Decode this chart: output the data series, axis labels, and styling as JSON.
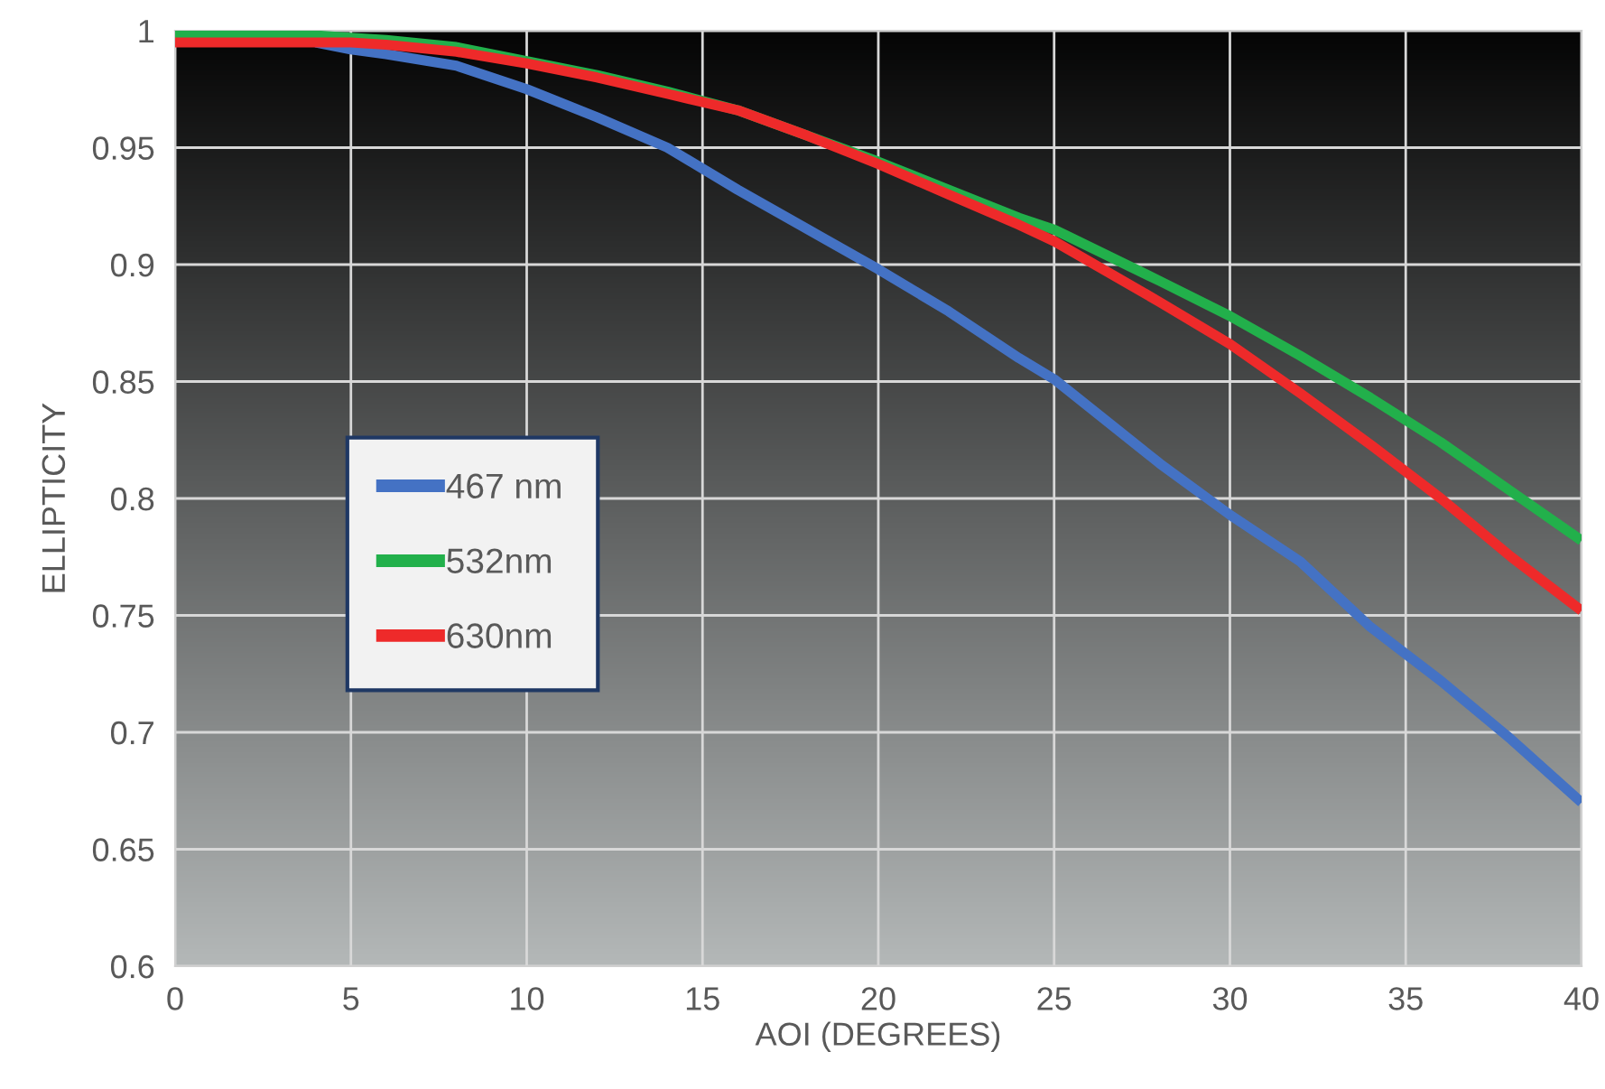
{
  "chart_data": {
    "type": "line",
    "xlabel": "AOI (DEGREES)",
    "ylabel": "ELLIPTICITY",
    "xlim": [
      0,
      40
    ],
    "xticks": [
      0,
      5,
      10,
      15,
      20,
      25,
      30,
      35,
      40
    ],
    "ylim": [
      0.6,
      1
    ],
    "yticks": [
      0.6,
      0.65,
      0.7,
      0.75,
      0.8,
      0.85,
      0.9,
      0.95,
      1
    ],
    "grid": true,
    "legend": "left",
    "marker": "none",
    "line_style": "solid",
    "x": [
      0,
      4,
      5,
      6,
      8,
      10,
      12,
      14,
      16,
      18,
      20,
      22,
      24,
      25,
      28,
      30,
      32,
      34,
      36,
      38,
      40
    ],
    "series": [
      {
        "name": "467 nm",
        "color": "#4472c4",
        "values": [
          null,
          0.995,
          0.992,
          0.99,
          0.985,
          0.975,
          0.963,
          0.95,
          0.932,
          0.915,
          0.898,
          0.88,
          0.86,
          0.851,
          0.815,
          0.793,
          0.773,
          0.745,
          0.722,
          0.697,
          0.67
        ]
      },
      {
        "name": "532nm",
        "color": "#22b04b",
        "values": [
          0.998,
          0.998,
          0.997,
          0.996,
          0.993,
          0.987,
          0.981,
          0.974,
          0.966,
          0.955,
          0.944,
          0.932,
          0.92,
          0.915,
          0.893,
          0.878,
          0.861,
          0.843,
          0.824,
          0.803,
          0.782
        ]
      },
      {
        "name": "630nm",
        "color": "#ee2a2a",
        "values": [
          0.995,
          0.995,
          0.995,
          0.994,
          0.991,
          0.986,
          0.98,
          0.973,
          0.966,
          0.955,
          0.943,
          0.93,
          0.917,
          0.91,
          0.884,
          0.866,
          0.845,
          0.823,
          0.8,
          0.775,
          0.752
        ]
      }
    ]
  }
}
